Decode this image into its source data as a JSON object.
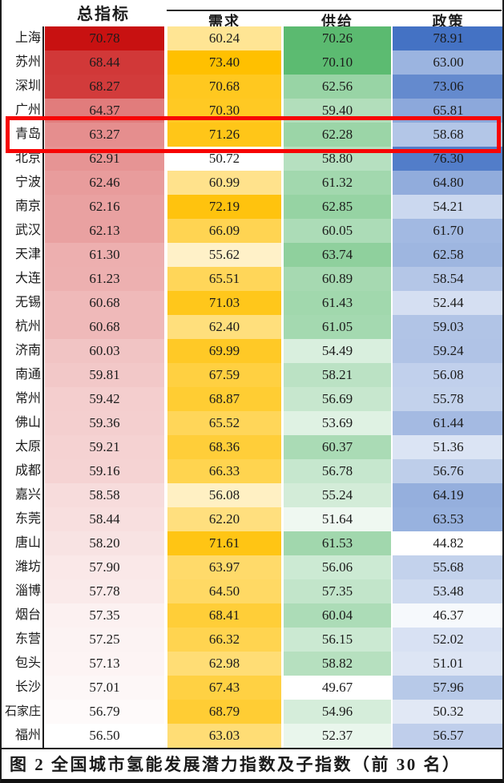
{
  "figure": {
    "caption": "图 2  全国城市氢能发展潜力指数及子指数（前 30 名）",
    "highlight": {
      "city": "青岛",
      "border_color": "#f70505"
    }
  },
  "chart_data": {
    "type": "heatmap",
    "title": "全国城市氢能发展潜力指数及子指数（前30名）",
    "legend_position": "none",
    "grid": false,
    "value_range_note": "each column uses a white-to-color scale from its own min to max",
    "columns": [
      {
        "label": "总指标",
        "group": "total",
        "scale_max_color": "#C81111"
      },
      {
        "label": "需求",
        "group": "sub",
        "scale_max_color": "#FFC000"
      },
      {
        "label": "供给",
        "group": "sub",
        "scale_max_color": "#5BBA70"
      },
      {
        "label": "政策",
        "group": "sub",
        "scale_max_color": "#4472C4"
      }
    ],
    "rows": [
      {
        "city": "上海",
        "values": [
          70.78,
          60.24,
          70.26,
          78.91
        ]
      },
      {
        "city": "苏州",
        "values": [
          68.44,
          73.4,
          70.1,
          63.0
        ]
      },
      {
        "city": "深圳",
        "values": [
          68.27,
          70.68,
          62.56,
          73.06
        ]
      },
      {
        "city": "广州",
        "values": [
          64.37,
          70.3,
          59.4,
          65.81
        ]
      },
      {
        "city": "青岛",
        "values": [
          63.27,
          71.26,
          62.28,
          58.68
        ]
      },
      {
        "city": "北京",
        "values": [
          62.91,
          50.72,
          58.8,
          76.3
        ]
      },
      {
        "city": "宁波",
        "values": [
          62.46,
          60.99,
          61.32,
          64.8
        ]
      },
      {
        "city": "南京",
        "values": [
          62.16,
          72.19,
          62.85,
          54.21
        ]
      },
      {
        "city": "武汉",
        "values": [
          62.13,
          66.09,
          60.05,
          61.7
        ]
      },
      {
        "city": "天津",
        "values": [
          61.3,
          55.62,
          63.74,
          62.58
        ]
      },
      {
        "city": "大连",
        "values": [
          61.23,
          65.51,
          60.89,
          58.54
        ]
      },
      {
        "city": "无锡",
        "values": [
          60.68,
          71.03,
          61.43,
          52.44
        ]
      },
      {
        "city": "杭州",
        "values": [
          60.68,
          62.4,
          61.05,
          59.03
        ]
      },
      {
        "city": "济南",
        "values": [
          60.03,
          69.99,
          54.49,
          59.24
        ]
      },
      {
        "city": "南通",
        "values": [
          59.81,
          67.59,
          58.21,
          56.08
        ]
      },
      {
        "city": "常州",
        "values": [
          59.42,
          68.87,
          56.69,
          55.78
        ]
      },
      {
        "city": "佛山",
        "values": [
          59.36,
          65.52,
          53.69,
          61.44
        ]
      },
      {
        "city": "太原",
        "values": [
          59.21,
          68.36,
          60.37,
          51.36
        ]
      },
      {
        "city": "成都",
        "values": [
          59.16,
          66.33,
          56.78,
          56.76
        ]
      },
      {
        "city": "嘉兴",
        "values": [
          58.58,
          56.08,
          55.24,
          64.19
        ]
      },
      {
        "city": "东莞",
        "values": [
          58.44,
          62.2,
          51.64,
          63.53
        ]
      },
      {
        "city": "唐山",
        "values": [
          58.2,
          71.61,
          61.53,
          44.82
        ]
      },
      {
        "city": "潍坊",
        "values": [
          57.9,
          63.97,
          56.06,
          55.68
        ]
      },
      {
        "city": "淄博",
        "values": [
          57.78,
          64.5,
          57.35,
          53.48
        ]
      },
      {
        "city": "烟台",
        "values": [
          57.35,
          68.41,
          60.04,
          46.37
        ]
      },
      {
        "city": "东营",
        "values": [
          57.25,
          66.32,
          56.15,
          52.02
        ]
      },
      {
        "city": "包头",
        "values": [
          57.13,
          62.98,
          58.82,
          51.01
        ]
      },
      {
        "city": "长沙",
        "values": [
          57.01,
          67.43,
          49.67,
          57.96
        ]
      },
      {
        "city": "石家庄",
        "values": [
          56.79,
          68.79,
          54.96,
          50.32
        ]
      },
      {
        "city": "福州",
        "values": [
          56.5,
          63.03,
          52.37,
          56.57
        ]
      }
    ]
  }
}
